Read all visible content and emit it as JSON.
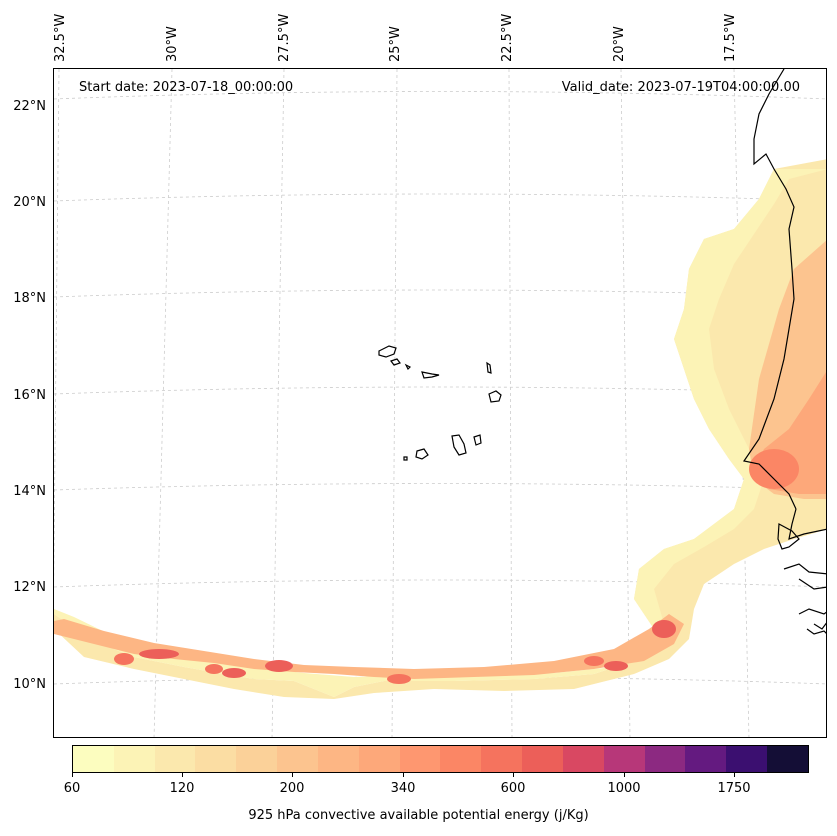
{
  "map": {
    "longitude_labels": [
      "32.5°W",
      "30°W",
      "27.5°W",
      "25°W",
      "22.5°W",
      "20°W",
      "17.5°W"
    ],
    "latitude_labels": [
      "22°N",
      "20°N",
      "18°N",
      "16°N",
      "14°N",
      "12°N",
      "10°N"
    ],
    "start_date": "Start date: 2023-07-18_00:00:00",
    "valid_date": "Valid_date: 2023-07-19T04:00:00.00",
    "gridlines": true,
    "coastline_color": "#000000"
  },
  "colorbar": {
    "label": "925 hPa convective available potential energy (j/Kg)",
    "tick_labels": [
      "60",
      "120",
      "200",
      "340",
      "600",
      "1000",
      "1750"
    ],
    "colors": [
      "#fcfdbf",
      "#fcf3b6",
      "#fbe8ad",
      "#fbdda3",
      "#fbd199",
      "#fcc48f",
      "#fdb684",
      "#fda87a",
      "#fe9770",
      "#fb8665",
      "#f5735e",
      "#ec5f59",
      "#d94862",
      "#b73779",
      "#8c2981",
      "#641a80",
      "#3b0f70",
      "#140e36"
    ]
  }
}
